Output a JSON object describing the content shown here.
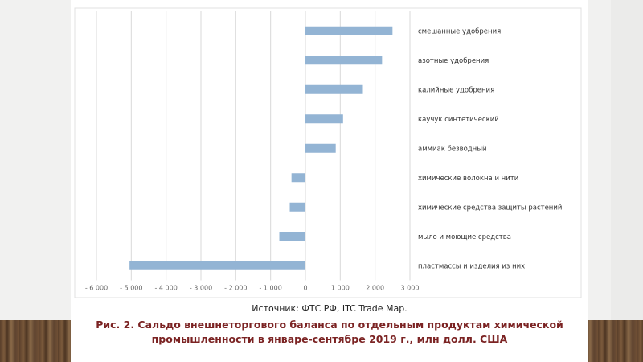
{
  "chart_data": {
    "type": "bar",
    "orientation": "horizontal",
    "categories": [
      "смешанные удобрения",
      "азотные удобрения",
      "калийные удобрения",
      "каучук синтетический",
      "аммиак безводный",
      "химические волокна и нити",
      "химические средства защиты растений",
      "мыло и моющие средства",
      "пластмассы и изделия из них"
    ],
    "values": [
      2500,
      2200,
      1650,
      1080,
      870,
      -400,
      -450,
      -750,
      -5050
    ],
    "xlim": [
      -6000,
      3000
    ],
    "x_ticks": [
      "- 6 000",
      "- 5 000",
      "- 4 000",
      "- 3 000",
      "- 2 000",
      "- 1 000",
      "0",
      "1 000",
      "2 000",
      "3 000"
    ],
    "x_tick_values": [
      -6000,
      -5000,
      -4000,
      -3000,
      -2000,
      -1000,
      0,
      1000,
      2000,
      3000
    ],
    "grid": "vertical",
    "legend": "none",
    "bar_color": "#93b4d4",
    "grid_color": "#d9d9d9"
  },
  "source": "Источник: ФТС РФ, ITC Trade Map.",
  "caption_line1": "Рис. 2. Сальдо внешнеторгового баланса по отдельным продуктам химической",
  "caption_line2": "промышленности в январе-сентябре 2019 г., млн долл. США"
}
